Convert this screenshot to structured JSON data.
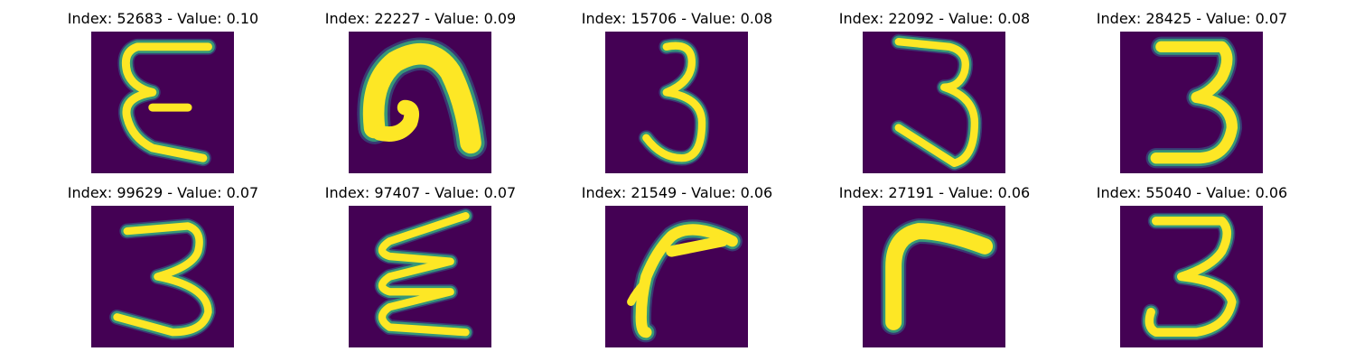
{
  "palette": {
    "background": "#440154",
    "edge": "#31688e",
    "glow": "#35b779",
    "core": "#fde725"
  },
  "panels": [
    {
      "title": "Index: 52683 - Value: 0.10",
      "glyph": "epsilon-3-icon"
    },
    {
      "title": "Index: 22227 - Value: 0.09",
      "glyph": "blob-arch-icon"
    },
    {
      "title": "Index: 15706 - Value: 0.08",
      "glyph": "digit-3-icon"
    },
    {
      "title": "Index: 22092 - Value: 0.08",
      "glyph": "digit-3-icon"
    },
    {
      "title": "Index: 28425 - Value: 0.07",
      "glyph": "digit-3-icon"
    },
    {
      "title": "Index: 99629 - Value: 0.07",
      "glyph": "digit-3-icon"
    },
    {
      "title": "Index: 97407 - Value: 0.07",
      "glyph": "zigzag-icon"
    },
    {
      "title": "Index: 21549 - Value: 0.06",
      "glyph": "hook-icon"
    },
    {
      "title": "Index: 27191 - Value: 0.06",
      "glyph": "corner-icon"
    },
    {
      "title": "Index: 55040 - Value: 0.06",
      "glyph": "digit-3-icon"
    }
  ]
}
